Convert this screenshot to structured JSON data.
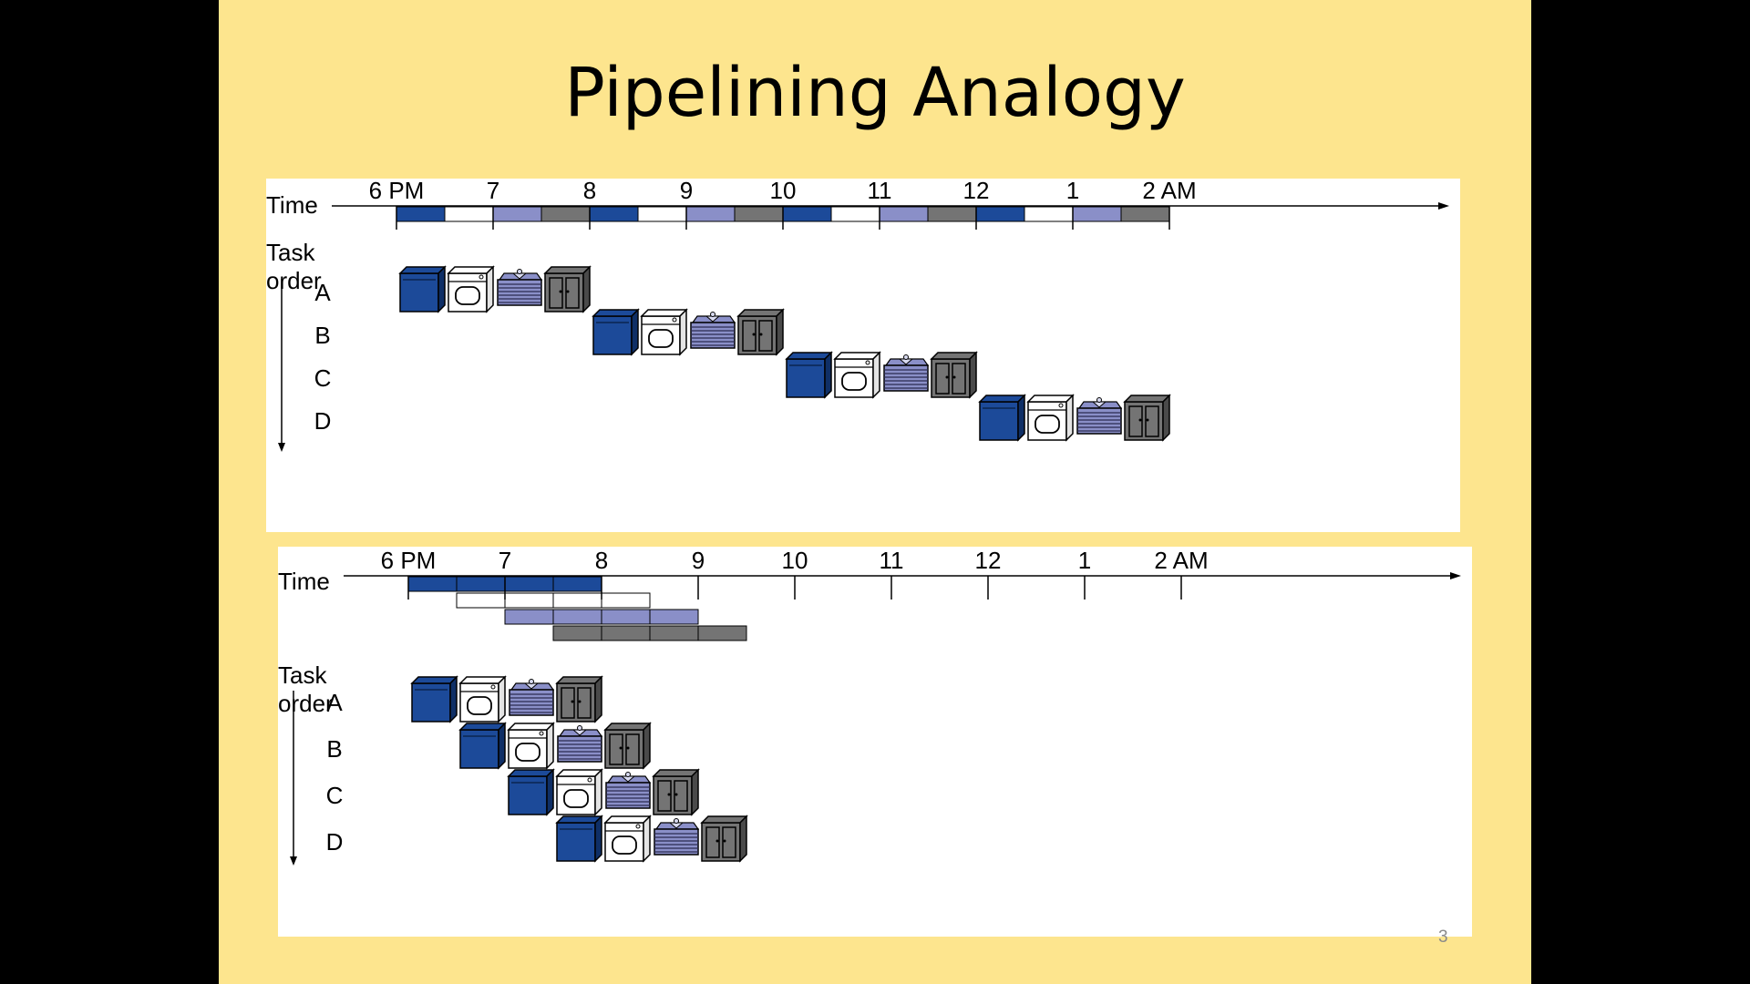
{
  "slide": {
    "title": "Pipelining Analogy",
    "page_number": "3"
  },
  "colors": {
    "wash": "#1c4a99",
    "dry": "#ffffff",
    "fold": "#8a8fc8",
    "store": "#747474",
    "background": "#fde58e"
  },
  "icons": [
    "washer-icon",
    "dryer-icon",
    "folded-clothes-icon",
    "closet-icon"
  ],
  "diagrams": [
    {
      "name": "sequential",
      "time_label": "Time",
      "task_label_1": "Task",
      "task_label_2": "order",
      "ticks": [
        "6 PM",
        "7",
        "8",
        "9",
        "10",
        "11",
        "12",
        "1",
        "2 AM"
      ],
      "tasks": [
        "A",
        "B",
        "C",
        "D"
      ],
      "task_start_hours": [
        0,
        2,
        4,
        6
      ],
      "stage_duration_hours": 0.5
    },
    {
      "name": "pipelined",
      "time_label": "Time",
      "task_label_1": "Task",
      "task_label_2": "order",
      "ticks": [
        "6 PM",
        "7",
        "8",
        "9",
        "10",
        "11",
        "12",
        "1",
        "2 AM"
      ],
      "tasks": [
        "A",
        "B",
        "C",
        "D"
      ],
      "task_start_hours": [
        0,
        0.5,
        1,
        1.5
      ],
      "stage_duration_hours": 0.5
    }
  ]
}
